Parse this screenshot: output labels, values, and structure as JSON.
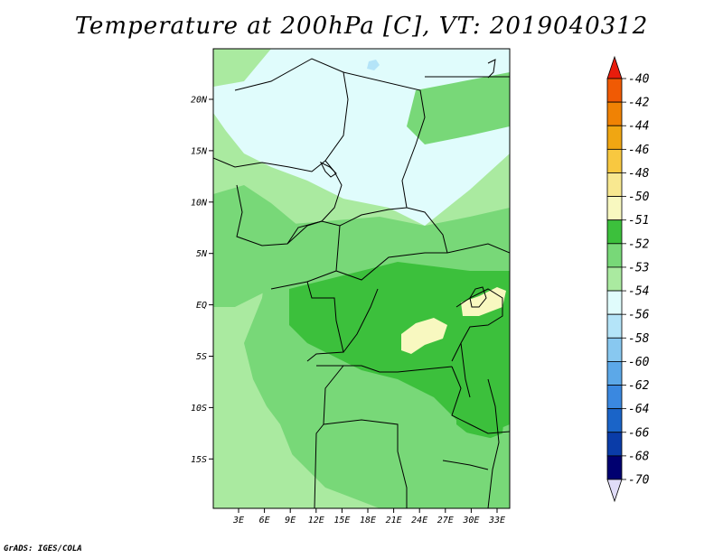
{
  "title": "Temperature at 200hPa [C], VT: 2019040312",
  "credit": "GrADS: IGES/COLA",
  "map": {
    "lat_labels": [
      "20N",
      "15N",
      "10N",
      "5N",
      "EQ",
      "5S",
      "10S",
      "15S"
    ],
    "lon_labels": [
      "3E",
      "6E",
      "9E",
      "12E",
      "15E",
      "18E",
      "21E",
      "24E",
      "27E",
      "30E",
      "33E"
    ]
  },
  "colorbar": {
    "labels": [
      "-40",
      "-42",
      "-44",
      "-46",
      "-48",
      "-50",
      "-51",
      "-52",
      "-53",
      "-54",
      "-56",
      "-58",
      "-60",
      "-62",
      "-64",
      "-66",
      "-68",
      "-70"
    ],
    "colors": [
      "#f01c06",
      "#f05a04",
      "#f08204",
      "#f0a612",
      "#f8c840",
      "#f8e890",
      "#f8f8c0",
      "#3cc03c",
      "#78d878",
      "#aaeaa0",
      "#e0fcfc",
      "#b4e4f8",
      "#88c8f0",
      "#5ca8e8",
      "#3a88e0",
      "#1a64c8",
      "#0a3ca8",
      "#000070",
      "#000050"
    ],
    "top_color": "#e81c0c",
    "bottom_color": "#e0dcf8"
  },
  "fill_colors": {
    "le_51": "#f8f8c0",
    "b52": "#3cc03c",
    "b53": "#78d878",
    "b54": "#aaeaa0",
    "b56": "#e0fcfc",
    "b58": "#b4e4f8",
    "b60": "#88c8f0"
  }
}
